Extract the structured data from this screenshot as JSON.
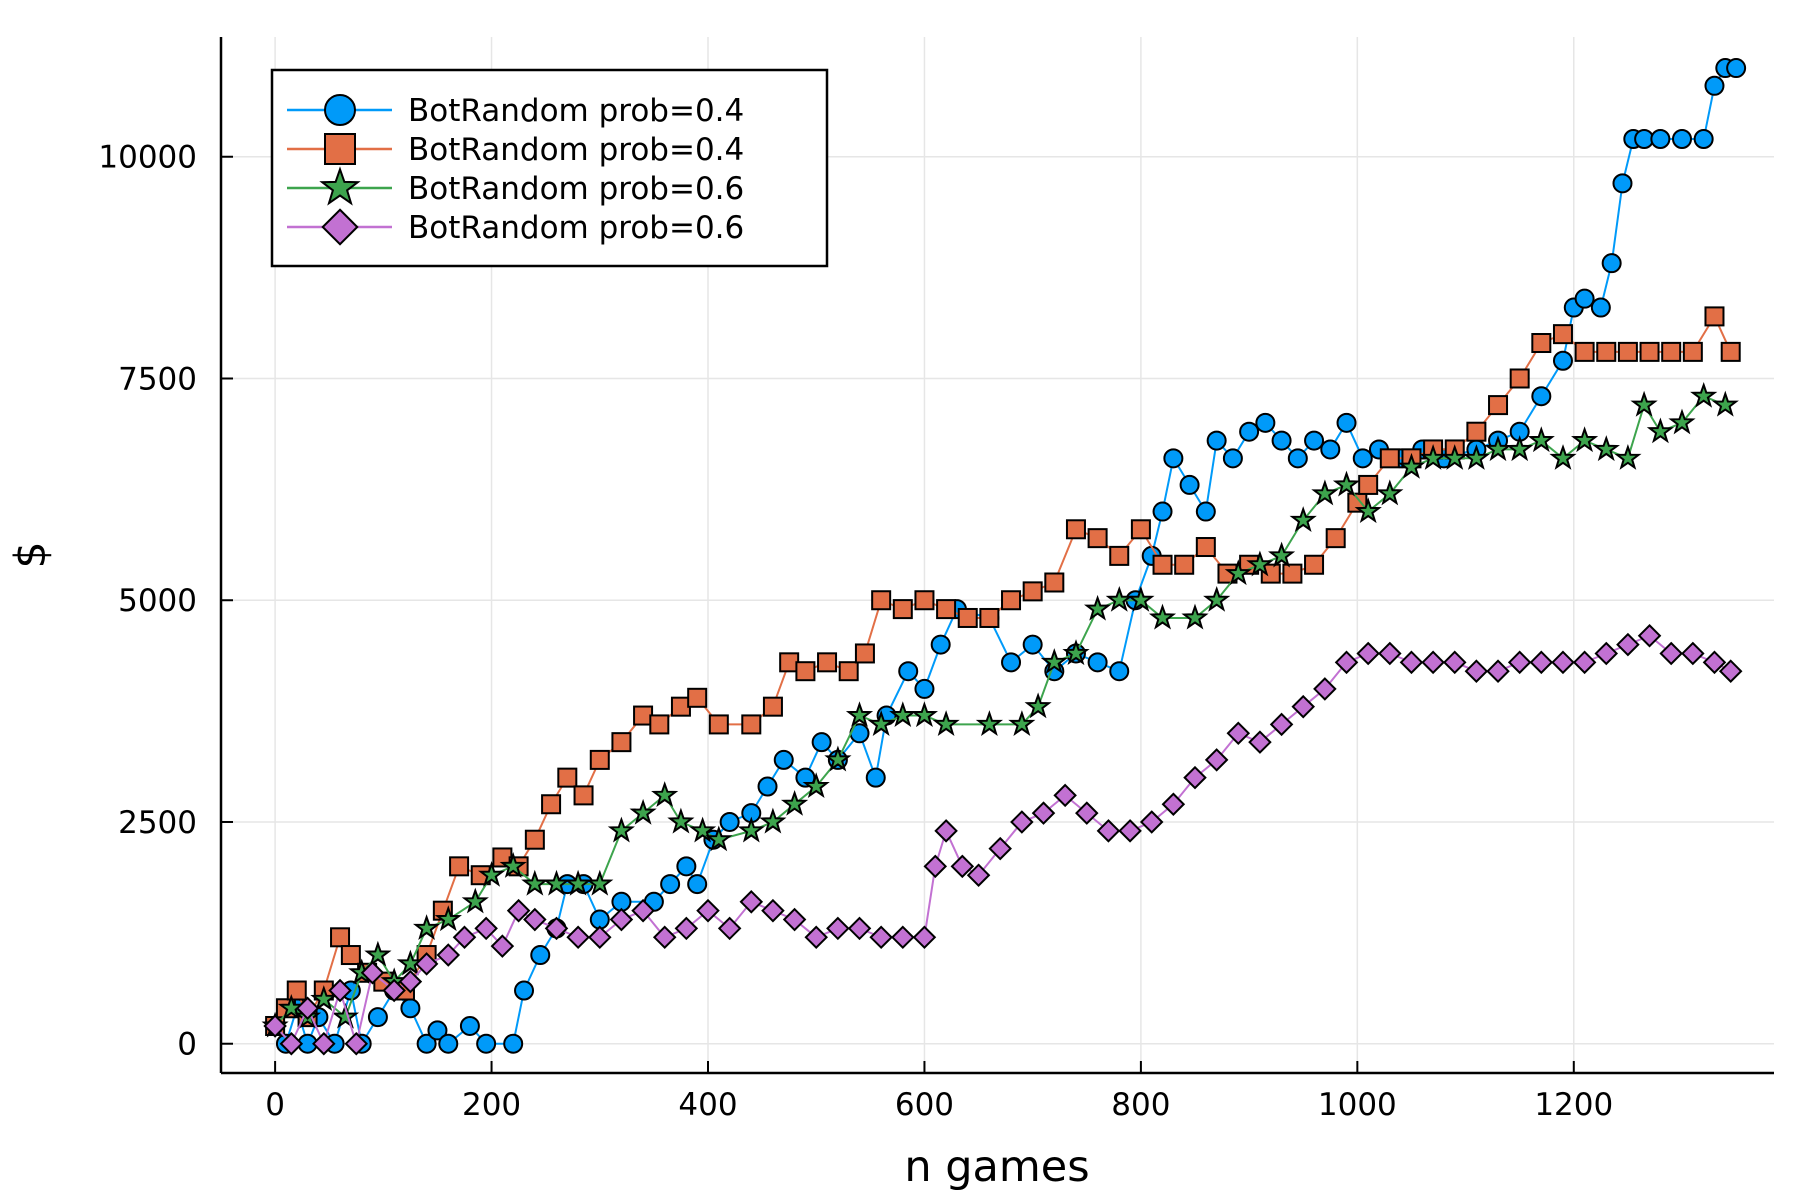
{
  "chart_data": {
    "type": "scatter",
    "title": "",
    "xlabel": "n games",
    "ylabel": "$",
    "xlim": [
      -50,
      1385
    ],
    "ylim": [
      -330,
      11350
    ],
    "xticks": [
      0,
      200,
      400,
      600,
      800,
      1000,
      1200
    ],
    "yticks": [
      0,
      2500,
      5000,
      7500,
      10000
    ],
    "xtick_labels": [
      "0",
      "200",
      "400",
      "600",
      "800",
      "1000",
      "1200"
    ],
    "ytick_labels": [
      "0",
      "2500",
      "5000",
      "7500",
      "10000"
    ],
    "grid": true,
    "legend_position": "top-left",
    "series": [
      {
        "name": "BotRandom prob=0.4",
        "marker": "circle",
        "color": "#009af9",
        "points": [
          [
            0,
            200
          ],
          [
            10,
            0
          ],
          [
            20,
            400
          ],
          [
            30,
            0
          ],
          [
            40,
            300
          ],
          [
            55,
            0
          ],
          [
            70,
            600
          ],
          [
            80,
            0
          ],
          [
            95,
            300
          ],
          [
            110,
            600
          ],
          [
            125,
            400
          ],
          [
            140,
            0
          ],
          [
            150,
            150
          ],
          [
            160,
            0
          ],
          [
            180,
            200
          ],
          [
            195,
            0
          ],
          [
            220,
            0
          ],
          [
            230,
            600
          ],
          [
            245,
            1000
          ],
          [
            260,
            1300
          ],
          [
            270,
            1800
          ],
          [
            285,
            1800
          ],
          [
            300,
            1400
          ],
          [
            320,
            1600
          ],
          [
            350,
            1600
          ],
          [
            365,
            1800
          ],
          [
            380,
            2000
          ],
          [
            390,
            1800
          ],
          [
            405,
            2300
          ],
          [
            420,
            2500
          ],
          [
            440,
            2600
          ],
          [
            455,
            2900
          ],
          [
            470,
            3200
          ],
          [
            490,
            3000
          ],
          [
            505,
            3400
          ],
          [
            520,
            3200
          ],
          [
            540,
            3500
          ],
          [
            555,
            3000
          ],
          [
            565,
            3700
          ],
          [
            585,
            4200
          ],
          [
            600,
            4000
          ],
          [
            615,
            4500
          ],
          [
            630,
            4900
          ],
          [
            660,
            4800
          ],
          [
            680,
            4300
          ],
          [
            700,
            4500
          ],
          [
            720,
            4200
          ],
          [
            740,
            4400
          ],
          [
            760,
            4300
          ],
          [
            780,
            4200
          ],
          [
            795,
            5000
          ],
          [
            810,
            5500
          ],
          [
            820,
            6000
          ],
          [
            830,
            6600
          ],
          [
            845,
            6300
          ],
          [
            860,
            6000
          ],
          [
            870,
            6800
          ],
          [
            885,
            6600
          ],
          [
            900,
            6900
          ],
          [
            915,
            7000
          ],
          [
            930,
            6800
          ],
          [
            945,
            6600
          ],
          [
            960,
            6800
          ],
          [
            975,
            6700
          ],
          [
            990,
            7000
          ],
          [
            1005,
            6600
          ],
          [
            1020,
            6700
          ],
          [
            1040,
            6600
          ],
          [
            1060,
            6700
          ],
          [
            1080,
            6600
          ],
          [
            1110,
            6700
          ],
          [
            1130,
            6800
          ],
          [
            1150,
            6900
          ],
          [
            1170,
            7300
          ],
          [
            1190,
            7700
          ],
          [
            1200,
            8300
          ],
          [
            1210,
            8400
          ],
          [
            1225,
            8300
          ],
          [
            1235,
            8800
          ],
          [
            1245,
            9700
          ],
          [
            1255,
            10200
          ],
          [
            1265,
            10200
          ],
          [
            1280,
            10200
          ],
          [
            1300,
            10200
          ],
          [
            1320,
            10200
          ],
          [
            1330,
            10800
          ],
          [
            1340,
            11000
          ],
          [
            1350,
            11000
          ]
        ]
      },
      {
        "name": "BotRandom prob=0.4",
        "marker": "square",
        "color": "#e26f46",
        "points": [
          [
            0,
            200
          ],
          [
            10,
            400
          ],
          [
            20,
            600
          ],
          [
            30,
            300
          ],
          [
            45,
            600
          ],
          [
            60,
            1200
          ],
          [
            70,
            1000
          ],
          [
            85,
            800
          ],
          [
            100,
            700
          ],
          [
            120,
            600
          ],
          [
            140,
            1000
          ],
          [
            155,
            1500
          ],
          [
            170,
            2000
          ],
          [
            190,
            1900
          ],
          [
            210,
            2100
          ],
          [
            225,
            2000
          ],
          [
            240,
            2300
          ],
          [
            255,
            2700
          ],
          [
            270,
            3000
          ],
          [
            285,
            2800
          ],
          [
            300,
            3200
          ],
          [
            320,
            3400
          ],
          [
            340,
            3700
          ],
          [
            355,
            3600
          ],
          [
            375,
            3800
          ],
          [
            390,
            3900
          ],
          [
            410,
            3600
          ],
          [
            440,
            3600
          ],
          [
            460,
            3800
          ],
          [
            475,
            4300
          ],
          [
            490,
            4200
          ],
          [
            510,
            4300
          ],
          [
            530,
            4200
          ],
          [
            545,
            4400
          ],
          [
            560,
            5000
          ],
          [
            580,
            4900
          ],
          [
            600,
            5000
          ],
          [
            620,
            4900
          ],
          [
            640,
            4800
          ],
          [
            660,
            4800
          ],
          [
            680,
            5000
          ],
          [
            700,
            5100
          ],
          [
            720,
            5200
          ],
          [
            740,
            5800
          ],
          [
            760,
            5700
          ],
          [
            780,
            5500
          ],
          [
            800,
            5800
          ],
          [
            820,
            5400
          ],
          [
            840,
            5400
          ],
          [
            860,
            5600
          ],
          [
            880,
            5300
          ],
          [
            900,
            5400
          ],
          [
            920,
            5300
          ],
          [
            940,
            5300
          ],
          [
            960,
            5400
          ],
          [
            980,
            5700
          ],
          [
            1000,
            6100
          ],
          [
            1010,
            6300
          ],
          [
            1030,
            6600
          ],
          [
            1050,
            6600
          ],
          [
            1070,
            6700
          ],
          [
            1090,
            6700
          ],
          [
            1110,
            6900
          ],
          [
            1130,
            7200
          ],
          [
            1150,
            7500
          ],
          [
            1170,
            7900
          ],
          [
            1190,
            8000
          ],
          [
            1210,
            7800
          ],
          [
            1230,
            7800
          ],
          [
            1250,
            7800
          ],
          [
            1270,
            7800
          ],
          [
            1290,
            7800
          ],
          [
            1310,
            7800
          ],
          [
            1330,
            8200
          ],
          [
            1345,
            7800
          ]
        ]
      },
      {
        "name": "BotRandom prob=0.6",
        "marker": "star",
        "color": "#3da44d",
        "points": [
          [
            0,
            200
          ],
          [
            15,
            400
          ],
          [
            30,
            300
          ],
          [
            45,
            500
          ],
          [
            65,
            300
          ],
          [
            80,
            800
          ],
          [
            95,
            1000
          ],
          [
            110,
            700
          ],
          [
            125,
            900
          ],
          [
            140,
            1300
          ],
          [
            160,
            1400
          ],
          [
            185,
            1600
          ],
          [
            200,
            1900
          ],
          [
            220,
            2000
          ],
          [
            240,
            1800
          ],
          [
            260,
            1800
          ],
          [
            280,
            1800
          ],
          [
            300,
            1800
          ],
          [
            320,
            2400
          ],
          [
            340,
            2600
          ],
          [
            360,
            2800
          ],
          [
            375,
            2500
          ],
          [
            395,
            2400
          ],
          [
            410,
            2300
          ],
          [
            440,
            2400
          ],
          [
            460,
            2500
          ],
          [
            480,
            2700
          ],
          [
            500,
            2900
          ],
          [
            520,
            3200
          ],
          [
            540,
            3700
          ],
          [
            560,
            3600
          ],
          [
            580,
            3700
          ],
          [
            600,
            3700
          ],
          [
            620,
            3600
          ],
          [
            660,
            3600
          ],
          [
            690,
            3600
          ],
          [
            705,
            3800
          ],
          [
            720,
            4300
          ],
          [
            740,
            4400
          ],
          [
            760,
            4900
          ],
          [
            780,
            5000
          ],
          [
            800,
            5000
          ],
          [
            820,
            4800
          ],
          [
            850,
            4800
          ],
          [
            870,
            5000
          ],
          [
            890,
            5300
          ],
          [
            910,
            5400
          ],
          [
            930,
            5500
          ],
          [
            950,
            5900
          ],
          [
            970,
            6200
          ],
          [
            990,
            6300
          ],
          [
            1010,
            6000
          ],
          [
            1030,
            6200
          ],
          [
            1050,
            6500
          ],
          [
            1070,
            6600
          ],
          [
            1090,
            6600
          ],
          [
            1110,
            6600
          ],
          [
            1130,
            6700
          ],
          [
            1150,
            6700
          ],
          [
            1170,
            6800
          ],
          [
            1190,
            6600
          ],
          [
            1210,
            6800
          ],
          [
            1230,
            6700
          ],
          [
            1250,
            6600
          ],
          [
            1265,
            7200
          ],
          [
            1280,
            6900
          ],
          [
            1300,
            7000
          ],
          [
            1320,
            7300
          ],
          [
            1340,
            7200
          ]
        ]
      },
      {
        "name": "BotRandom prob=0.6",
        "marker": "diamond",
        "color": "#c271d2",
        "points": [
          [
            0,
            200
          ],
          [
            15,
            0
          ],
          [
            30,
            400
          ],
          [
            45,
            0
          ],
          [
            60,
            600
          ],
          [
            75,
            0
          ],
          [
            90,
            800
          ],
          [
            110,
            600
          ],
          [
            125,
            700
          ],
          [
            140,
            900
          ],
          [
            160,
            1000
          ],
          [
            175,
            1200
          ],
          [
            195,
            1300
          ],
          [
            210,
            1100
          ],
          [
            225,
            1500
          ],
          [
            240,
            1400
          ],
          [
            260,
            1300
          ],
          [
            280,
            1200
          ],
          [
            300,
            1200
          ],
          [
            320,
            1400
          ],
          [
            340,
            1500
          ],
          [
            360,
            1200
          ],
          [
            380,
            1300
          ],
          [
            400,
            1500
          ],
          [
            420,
            1300
          ],
          [
            440,
            1600
          ],
          [
            460,
            1500
          ],
          [
            480,
            1400
          ],
          [
            500,
            1200
          ],
          [
            520,
            1300
          ],
          [
            540,
            1300
          ],
          [
            560,
            1200
          ],
          [
            580,
            1200
          ],
          [
            600,
            1200
          ],
          [
            610,
            2000
          ],
          [
            620,
            2400
          ],
          [
            635,
            2000
          ],
          [
            650,
            1900
          ],
          [
            670,
            2200
          ],
          [
            690,
            2500
          ],
          [
            710,
            2600
          ],
          [
            730,
            2800
          ],
          [
            750,
            2600
          ],
          [
            770,
            2400
          ],
          [
            790,
            2400
          ],
          [
            810,
            2500
          ],
          [
            830,
            2700
          ],
          [
            850,
            3000
          ],
          [
            870,
            3200
          ],
          [
            890,
            3500
          ],
          [
            910,
            3400
          ],
          [
            930,
            3600
          ],
          [
            950,
            3800
          ],
          [
            970,
            4000
          ],
          [
            990,
            4300
          ],
          [
            1010,
            4400
          ],
          [
            1030,
            4400
          ],
          [
            1050,
            4300
          ],
          [
            1070,
            4300
          ],
          [
            1090,
            4300
          ],
          [
            1110,
            4200
          ],
          [
            1130,
            4200
          ],
          [
            1150,
            4300
          ],
          [
            1170,
            4300
          ],
          [
            1190,
            4300
          ],
          [
            1210,
            4300
          ],
          [
            1230,
            4400
          ],
          [
            1250,
            4500
          ],
          [
            1270,
            4600
          ],
          [
            1290,
            4400
          ],
          [
            1310,
            4400
          ],
          [
            1330,
            4300
          ],
          [
            1345,
            4200
          ]
        ]
      }
    ]
  }
}
